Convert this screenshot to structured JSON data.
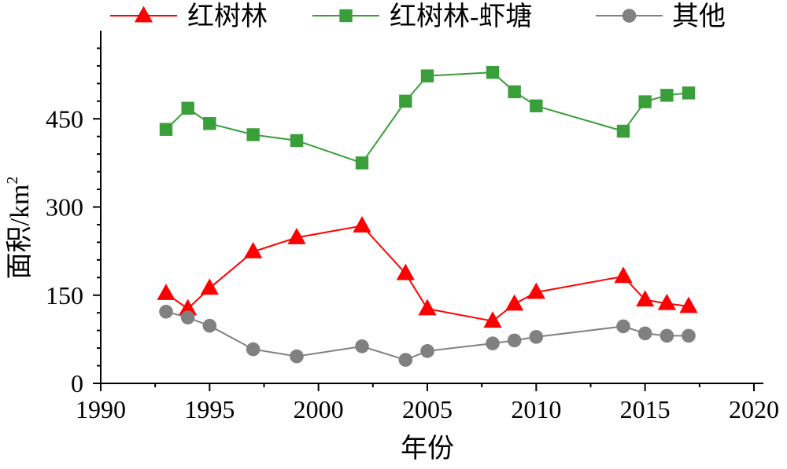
{
  "chart_data": {
    "type": "line",
    "title": "",
    "xlabel": "年份",
    "ylabel_main": "面积/km",
    "ylabel_sup": "2",
    "xlim": [
      1990,
      2020
    ],
    "ylim": [
      0,
      600
    ],
    "xticks": [
      1990,
      1995,
      2000,
      2005,
      2010,
      2015,
      2020
    ],
    "yticks": [
      0,
      150,
      300,
      450
    ],
    "grid": false,
    "legend_position": "top",
    "series": [
      {
        "name": "红树林",
        "color": "#ff0000",
        "marker": "triangle",
        "x": [
          1993,
          1994,
          1995,
          1997,
          1999,
          2002,
          2004,
          2005,
          2008,
          2009,
          2010,
          2014,
          2015,
          2016,
          2017
        ],
        "y": [
          153,
          127,
          162,
          224,
          248,
          268,
          187,
          127,
          106,
          135,
          155,
          182,
          142,
          136,
          131
        ]
      },
      {
        "name": "红树林-虾塘",
        "color": "#3a9e3a",
        "marker": "square",
        "x": [
          1993,
          1994,
          1995,
          1997,
          1999,
          2002,
          2004,
          2005,
          2008,
          2009,
          2010,
          2014,
          2015,
          2016,
          2017
        ],
        "y": [
          432,
          468,
          442,
          423,
          413,
          375,
          480,
          523,
          529,
          496,
          472,
          429,
          479,
          490,
          494
        ]
      },
      {
        "name": "其他",
        "color": "#808080",
        "marker": "circle",
        "x": [
          1993,
          1994,
          1995,
          1997,
          1999,
          2002,
          2004,
          2005,
          2008,
          2009,
          2010,
          2014,
          2015,
          2016,
          2017
        ],
        "y": [
          122,
          112,
          98,
          58,
          46,
          63,
          40,
          55,
          68,
          73,
          79,
          97,
          85,
          81,
          81
        ]
      }
    ]
  }
}
